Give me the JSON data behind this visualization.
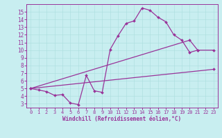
{
  "background_color": "#c8eef0",
  "grid_color": "#aadddd",
  "line_color": "#993399",
  "xlim": [
    -0.5,
    23.5
  ],
  "ylim": [
    2.5,
    16
  ],
  "xlabel": "Windchill (Refroidissement éolien,°C)",
  "xticks": [
    0,
    1,
    2,
    3,
    4,
    5,
    6,
    7,
    8,
    9,
    10,
    11,
    12,
    13,
    14,
    15,
    16,
    17,
    18,
    19,
    20,
    21,
    22,
    23
  ],
  "yticks": [
    3,
    4,
    5,
    6,
    7,
    8,
    9,
    10,
    11,
    12,
    13,
    14,
    15
  ],
  "line1_x": [
    0,
    1,
    2,
    3,
    4,
    5,
    6,
    7,
    8,
    9,
    10,
    11,
    12,
    13,
    14,
    15,
    16,
    17,
    18,
    19,
    20,
    21
  ],
  "line1_y": [
    5.0,
    4.8,
    4.6,
    4.1,
    4.2,
    3.1,
    2.9,
    6.7,
    4.7,
    4.5,
    10.1,
    11.9,
    13.5,
    13.8,
    15.5,
    15.2,
    14.3,
    13.7,
    12.0,
    11.3,
    9.7,
    10.0
  ],
  "line2_x": [
    0,
    23
  ],
  "line2_y": [
    5.0,
    7.5
  ],
  "line3_x": [
    0,
    20,
    21,
    23
  ],
  "line3_y": [
    5.0,
    11.3,
    10.0,
    10.0
  ],
  "marker": "D",
  "markersize": 2.0,
  "linewidth": 0.9,
  "title_fontsize": 6,
  "tick_fontsize": 5,
  "xlabel_fontsize": 5.5
}
